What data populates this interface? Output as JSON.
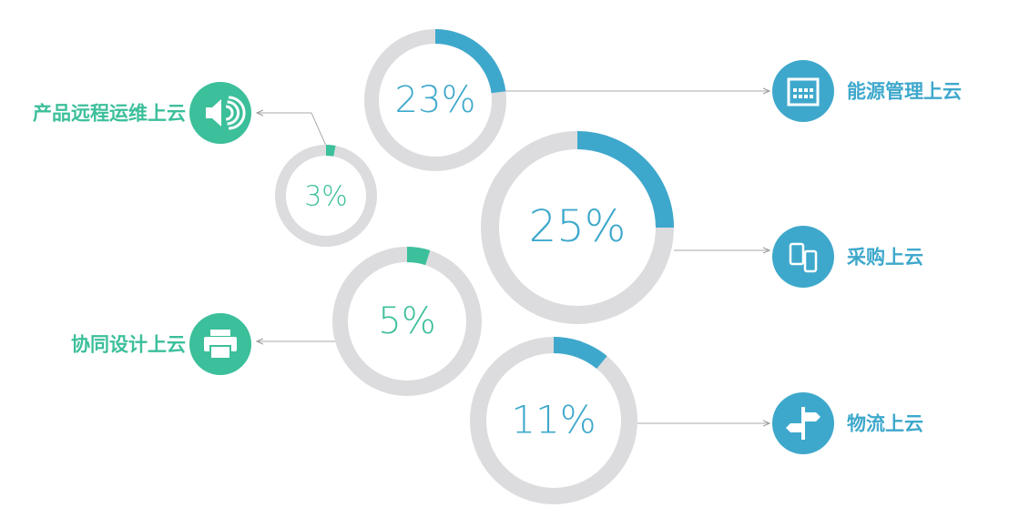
{
  "chart_data": [
    {
      "type": "donut",
      "categories": [
        "能源管理上云"
      ],
      "values": [
        23
      ],
      "value_labels": [
        "23%"
      ],
      "color": "#3ea8cc"
    },
    {
      "type": "donut",
      "categories": [
        "产品远程运维上云"
      ],
      "values": [
        3
      ],
      "value_labels": [
        "3%"
      ],
      "color": "#3cbf9b"
    },
    {
      "type": "donut",
      "categories": [
        "采购上云"
      ],
      "values": [
        25
      ],
      "value_labels": [
        "25%"
      ],
      "color": "#3ea8cc"
    },
    {
      "type": "donut",
      "categories": [
        "协同设计上云"
      ],
      "values": [
        5
      ],
      "value_labels": [
        "5%"
      ],
      "color": "#3cbf9b"
    },
    {
      "type": "donut",
      "categories": [
        "物流上云"
      ],
      "values": [
        11
      ],
      "value_labels": [
        "11%"
      ],
      "color": "#3ea8cc"
    }
  ]
}
